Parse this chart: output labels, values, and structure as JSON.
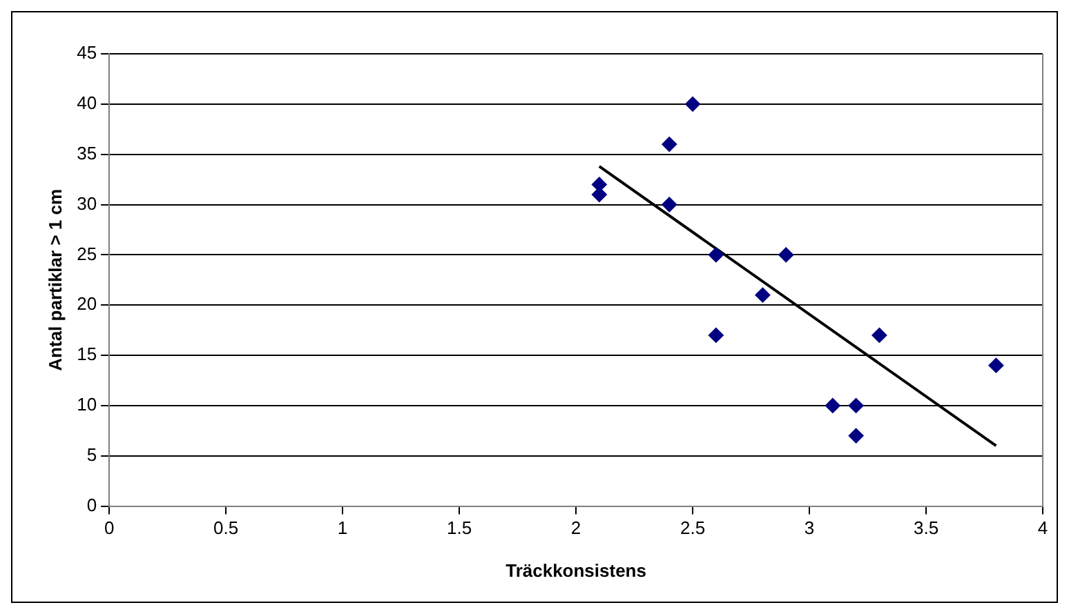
{
  "chart_data": {
    "type": "scatter",
    "xlabel": "Träckkonsistens",
    "ylabel": "Antal partiklar > 1 cm",
    "xlim": [
      0,
      4
    ],
    "xticks": [
      0,
      0.5,
      1,
      1.5,
      2,
      2.5,
      3,
      3.5,
      4
    ],
    "ylim": [
      0,
      45
    ],
    "yticks": [
      0,
      5,
      10,
      15,
      20,
      25,
      30,
      35,
      40,
      45
    ],
    "grid": "y",
    "legend": false,
    "marker": "diamond",
    "series": [
      {
        "color": "#000080",
        "x": [
          2.1,
          2.1,
          2.4,
          2.5,
          2.4,
          2.6,
          2.9,
          2.8,
          2.6,
          3.3,
          3.8,
          3.1,
          3.2,
          3.2
        ],
        "values": [
          32,
          31,
          36,
          40,
          30,
          25,
          25,
          21,
          17,
          17,
          14,
          10,
          10,
          7
        ]
      },
      {
        "type": "line",
        "color": "#000000",
        "x": [
          2.1,
          3.8
        ],
        "values": [
          33.8,
          6
        ],
        "marker": "none"
      }
    ]
  }
}
